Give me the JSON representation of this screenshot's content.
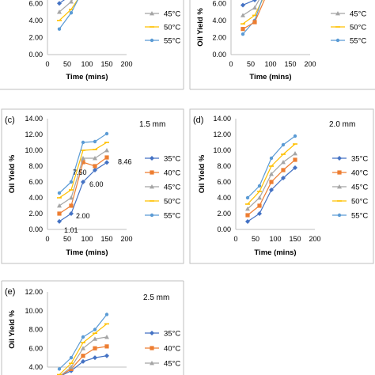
{
  "colors": {
    "s35": "#4472C4",
    "s40": "#ED7D31",
    "s45": "#A5A5A5",
    "s50": "#FFC000",
    "s55": "#5B9BD5",
    "axis": "#BFBFBF",
    "frame": "#BFBFBF",
    "text": "#000000"
  },
  "chart_data": [
    {
      "panel": "a",
      "title": "",
      "type": "line",
      "xlabel": "Time (mins)",
      "ylabel": "Oil Yield %",
      "xlim": [
        0,
        200
      ],
      "ylim": [
        0,
        14
      ],
      "xticks": [
        "0",
        "50",
        "100",
        "150",
        "200"
      ],
      "yticks": [
        "0.00",
        "2.00",
        "4.00",
        "6.00"
      ],
      "grid": false,
      "legend_position": "right",
      "x": [
        30,
        60,
        90,
        120,
        150
      ],
      "series": [
        {
          "name": "45°C",
          "key": "s45",
          "values": [
            5.0,
            6.2,
            8.4,
            9.4,
            10.4
          ]
        },
        {
          "name": "50°C",
          "key": "s50",
          "values": [
            4.0,
            5.3,
            7.4,
            8.4,
            9.4
          ]
        },
        {
          "name": "55°C",
          "key": "s55",
          "values": [
            3.0,
            4.9,
            7.6,
            8.6,
            9.6
          ]
        },
        {
          "name": "",
          "key": "s35",
          "values": [
            6.0,
            7.0,
            9.0,
            10.0,
            11.0
          ]
        }
      ]
    },
    {
      "panel": "b",
      "title": "",
      "type": "line",
      "xlabel": "Time (mins)",
      "ylabel": "Oil Yield %",
      "xlim": [
        0,
        200
      ],
      "ylim": [
        0,
        14
      ],
      "xticks": [
        "0",
        "50",
        "100",
        "150",
        "200"
      ],
      "yticks": [
        "0.00",
        "2.00",
        "4.00",
        "6.00"
      ],
      "grid": false,
      "legend_position": "right",
      "x": [
        30,
        60,
        90,
        120,
        150
      ],
      "series": [
        {
          "name": "45°C",
          "key": "s45",
          "values": [
            4.6,
            5.5,
            8.0,
            9.0,
            10.0
          ]
        },
        {
          "name": "50°C",
          "key": "s50",
          "values": [
            3.6,
            4.6,
            7.4,
            8.4,
            9.4
          ]
        },
        {
          "name": "55°C",
          "key": "s55",
          "values": [
            2.4,
            4.0,
            8.0,
            9.0,
            10.0
          ]
        },
        {
          "name": "",
          "key": "s40",
          "values": [
            3.0,
            3.8,
            7.0,
            8.0,
            9.0
          ]
        },
        {
          "name": "",
          "key": "s35",
          "values": [
            5.8,
            6.4,
            9.0,
            10.0,
            11.0
          ]
        }
      ]
    },
    {
      "panel": "c",
      "title": "1.5 mm",
      "type": "line",
      "xlabel": "Time (mins)",
      "ylabel": "Oil Yield %",
      "xlim": [
        0,
        200
      ],
      "ylim": [
        0,
        14
      ],
      "xticks": [
        "0",
        "50",
        "100",
        "150",
        "200"
      ],
      "yticks": [
        "0.00",
        "2.00",
        "4.00",
        "6.00",
        "8.00",
        "10.00",
        "12.00",
        "14.00"
      ],
      "grid": false,
      "legend_position": "right",
      "x": [
        30,
        60,
        90,
        120,
        150
      ],
      "series": [
        {
          "name": "35°C",
          "key": "s35",
          "values": [
            1.01,
            2.0,
            6.0,
            7.5,
            8.46
          ]
        },
        {
          "name": "40°C",
          "key": "s40",
          "values": [
            2.0,
            3.0,
            8.5,
            8.0,
            9.1
          ]
        },
        {
          "name": "45°C",
          "key": "s45",
          "values": [
            3.0,
            4.0,
            9.0,
            9.0,
            10.0
          ]
        },
        {
          "name": "50°C",
          "key": "s50",
          "values": [
            4.0,
            5.0,
            10.0,
            10.1,
            11.0
          ]
        },
        {
          "name": "55°C",
          "key": "s55",
          "values": [
            4.6,
            6.0,
            11.0,
            11.1,
            12.1
          ]
        }
      ],
      "data_labels": [
        {
          "series": "35°C",
          "index": 0,
          "text": "1.01"
        },
        {
          "series": "35°C",
          "index": 1,
          "text": "2.00"
        },
        {
          "series": "35°C",
          "index": 2,
          "text": "6.00"
        },
        {
          "series": "35°C",
          "index": 3,
          "text": "7.50"
        },
        {
          "series": "35°C",
          "index": 4,
          "text": "8.46"
        }
      ]
    },
    {
      "panel": "d",
      "title": "2.0 mm",
      "type": "line",
      "xlabel": "Time (mins)",
      "ylabel": "Oil Yield %",
      "xlim": [
        0,
        200
      ],
      "ylim": [
        0,
        14
      ],
      "xticks": [
        "0",
        "50",
        "100",
        "150",
        "200"
      ],
      "yticks": [
        "0.00",
        "2.00",
        "4.00",
        "6.00",
        "8.00",
        "10.00",
        "12.00",
        "14.00"
      ],
      "grid": false,
      "legend_position": "right",
      "x": [
        30,
        60,
        90,
        120,
        150
      ],
      "series": [
        {
          "name": "35°C",
          "key": "s35",
          "values": [
            1.0,
            2.0,
            5.0,
            6.5,
            7.8
          ]
        },
        {
          "name": "40°C",
          "key": "s40",
          "values": [
            1.8,
            3.0,
            6.0,
            7.5,
            8.8
          ]
        },
        {
          "name": "45°C",
          "key": "s45",
          "values": [
            2.6,
            4.0,
            7.0,
            8.5,
            9.6
          ]
        },
        {
          "name": "50°C",
          "key": "s50",
          "values": [
            3.2,
            4.8,
            8.0,
            9.5,
            10.8
          ]
        },
        {
          "name": "55°C",
          "key": "s55",
          "values": [
            4.0,
            5.5,
            9.0,
            10.7,
            11.8
          ]
        }
      ]
    },
    {
      "panel": "e",
      "title": "2.5 mm",
      "type": "line",
      "xlabel": "",
      "ylabel": "Oil Yield %",
      "xlim": [
        0,
        200
      ],
      "ylim": [
        4,
        12
      ],
      "xticks": [],
      "yticks": [
        "4.00",
        "6.00",
        "8.00",
        "10.00",
        "12.00"
      ],
      "grid": false,
      "legend_position": "right",
      "x": [
        30,
        60,
        90,
        120,
        150
      ],
      "series": [
        {
          "name": "35°C",
          "key": "s35",
          "values": [
            3.0,
            3.6,
            4.6,
            5.0,
            5.2
          ]
        },
        {
          "name": "40°C",
          "key": "s40",
          "values": [
            3.0,
            3.8,
            5.2,
            6.0,
            6.2
          ]
        },
        {
          "name": "45°C",
          "key": "s45",
          "values": [
            3.0,
            4.0,
            6.0,
            7.0,
            7.2
          ]
        },
        {
          "name": "50°C",
          "key": "s50",
          "values": [
            3.2,
            4.4,
            6.6,
            7.6,
            8.6
          ]
        },
        {
          "name": "55°C",
          "key": "s55",
          "values": [
            3.8,
            5.0,
            7.2,
            8.0,
            9.6
          ]
        }
      ]
    }
  ],
  "panel_labels": {
    "c": "(c)",
    "d": "(d)",
    "e": "(e)"
  },
  "legend_extra": {
    "a_top": "45°C",
    "b_top": "45°C"
  }
}
